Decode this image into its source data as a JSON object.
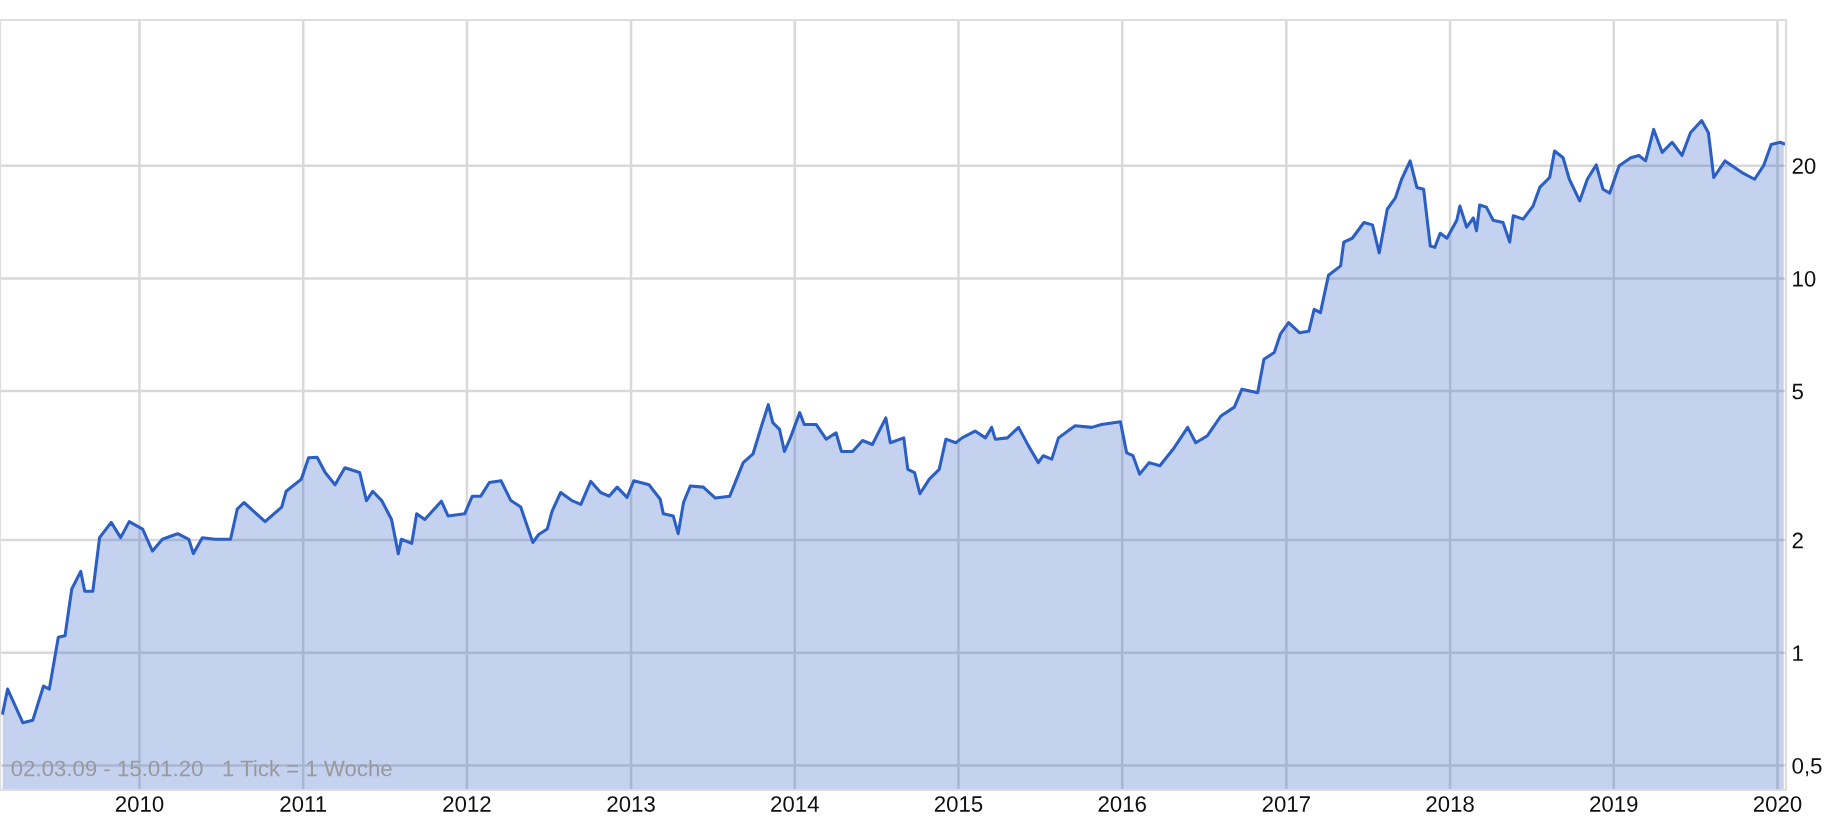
{
  "chart_data": {
    "type": "area",
    "log": "y",
    "grid": true,
    "annotations": [
      "02.03.09 - 15.01.20   1 Tick = 1 Woche"
    ],
    "xlim": [
      "2009-02-24",
      "2020-01-20"
    ],
    "xticks": [
      {
        "value": "2010-01-01",
        "label": "2010"
      },
      {
        "value": "2011-01-01",
        "label": "2011"
      },
      {
        "value": "2012-01-01",
        "label": "2012"
      },
      {
        "value": "2013-01-01",
        "label": "2013"
      },
      {
        "value": "2014-01-01",
        "label": "2014"
      },
      {
        "value": "2015-01-01",
        "label": "2015"
      },
      {
        "value": "2016-01-01",
        "label": "2016"
      },
      {
        "value": "2017-01-01",
        "label": "2017"
      },
      {
        "value": "2018-01-01",
        "label": "2018"
      },
      {
        "value": "2019-01-01",
        "label": "2019"
      },
      {
        "value": "2020-01-01",
        "label": "2020"
      }
    ],
    "ylim": [
      0.43,
      49
    ],
    "yticks": [
      {
        "value": 0.5,
        "label": "0,5"
      },
      1,
      2,
      5,
      10,
      20
    ],
    "series": [
      {
        "color": "#2b5fc4",
        "x": [
          "2009-03-02",
          "2009-03-13",
          "2009-04-16",
          "2009-05-08",
          "2009-06-01",
          "2009-06-14",
          "2009-07-04",
          "2009-07-19",
          "2009-08-03",
          "2009-08-23",
          "2009-09-01",
          "2009-09-19",
          "2009-10-04",
          "2009-10-30",
          "2009-11-20",
          "2009-12-09",
          "2010-01-08",
          "2010-01-30",
          "2010-02-21",
          "2010-03-27",
          "2010-04-21",
          "2010-05-01",
          "2010-05-21",
          "2010-06-19",
          "2010-07-23",
          "2010-08-07",
          "2010-08-22",
          "2010-10-08",
          "2010-11-14",
          "2010-11-24",
          "2010-12-28",
          "2011-01-13",
          "2011-02-01",
          "2011-02-19",
          "2011-03-13",
          "2011-04-04",
          "2011-05-07",
          "2011-05-22",
          "2011-06-05",
          "2011-06-25",
          "2011-07-17",
          "2011-08-01",
          "2011-08-08",
          "2011-08-31",
          "2011-09-11",
          "2011-09-29",
          "2011-11-05",
          "2011-11-20",
          "2011-12-27",
          "2012-01-13",
          "2012-02-01",
          "2012-02-20",
          "2012-03-17",
          "2012-04-08",
          "2012-04-30",
          "2012-05-27",
          "2012-06-09",
          "2012-06-28",
          "2012-07-09",
          "2012-07-28",
          "2012-08-22",
          "2012-09-11",
          "2012-10-03",
          "2012-10-25",
          "2012-11-13",
          "2012-12-01",
          "2012-12-23",
          "2013-01-07",
          "2013-02-10",
          "2013-03-07",
          "2013-03-14",
          "2013-04-05",
          "2013-04-16",
          "2013-04-28",
          "2013-05-13",
          "2013-06-11",
          "2013-07-08",
          "2013-08-09",
          "2013-09-08",
          "2013-09-30",
          "2013-10-19",
          "2013-11-03",
          "2013-11-13",
          "2013-11-28",
          "2013-12-09",
          "2013-12-21",
          "2014-01-12",
          "2014-01-22",
          "2014-02-18",
          "2014-03-12",
          "2014-04-03",
          "2014-04-15",
          "2014-05-10",
          "2014-06-01",
          "2014-06-23",
          "2014-07-23",
          "2014-08-02",
          "2014-09-01",
          "2014-09-10",
          "2014-09-25",
          "2014-10-07",
          "2014-10-28",
          "2014-11-19",
          "2014-12-04",
          "2014-12-26",
          "2015-01-09",
          "2015-02-07",
          "2015-03-02",
          "2015-03-16",
          "2015-03-24",
          "2015-04-20",
          "2015-05-15",
          "2015-06-06",
          "2015-06-28",
          "2015-07-09",
          "2015-07-28",
          "2015-08-12",
          "2015-09-18",
          "2015-10-25",
          "2015-11-16",
          "2015-12-28",
          "2016-01-11",
          "2016-01-25",
          "2016-02-09",
          "2016-03-01",
          "2016-03-25",
          "2016-04-26",
          "2016-05-26",
          "2016-06-13",
          "2016-07-09",
          "2016-08-08",
          "2016-09-07",
          "2016-09-24",
          "2016-10-29",
          "2016-11-12",
          "2016-12-05",
          "2016-12-19",
          "2017-01-06",
          "2017-01-30",
          "2017-02-20",
          "2017-03-04",
          "2017-03-18",
          "2017-04-05",
          "2017-05-02",
          "2017-05-09",
          "2017-05-28",
          "2017-06-23",
          "2017-07-12",
          "2017-07-27",
          "2017-08-14",
          "2017-09-01",
          "2017-09-15",
          "2017-10-04",
          "2017-10-19",
          "2017-11-03",
          "2017-11-18",
          "2017-11-28",
          "2017-12-10",
          "2017-12-25",
          "2018-01-16",
          "2018-01-23",
          "2018-02-07",
          "2018-02-22",
          "2018-03-01",
          "2018-03-08",
          "2018-03-23",
          "2018-04-07",
          "2018-04-29",
          "2018-05-14",
          "2018-05-22",
          "2018-06-13",
          "2018-07-05",
          "2018-07-20",
          "2018-08-11",
          "2018-08-22",
          "2018-09-10",
          "2018-09-24",
          "2018-10-17",
          "2018-11-03",
          "2018-11-23",
          "2018-12-08",
          "2018-12-23",
          "2019-01-13",
          "2019-02-08",
          "2019-02-26",
          "2019-03-13",
          "2019-03-31",
          "2019-04-19",
          "2019-05-11",
          "2019-06-02",
          "2019-06-21",
          "2019-07-16",
          "2019-07-31",
          "2019-08-12",
          "2019-09-06",
          "2019-10-13",
          "2019-11-11",
          "2019-12-01",
          "2019-12-18",
          "2020-01-07",
          "2020-01-15"
        ],
        "values": [
          0.69,
          0.8,
          0.65,
          0.66,
          0.815,
          0.8,
          1.1,
          1.11,
          1.48,
          1.65,
          1.46,
          1.46,
          2.03,
          2.23,
          2.03,
          2.24,
          2.14,
          1.87,
          2.01,
          2.08,
          2.01,
          1.84,
          2.03,
          2.01,
          2.01,
          2.42,
          2.52,
          2.24,
          2.45,
          2.7,
          2.91,
          3.32,
          3.33,
          3.03,
          2.81,
          3.12,
          3.03,
          2.55,
          2.7,
          2.55,
          2.27,
          1.84,
          2.01,
          1.96,
          2.35,
          2.27,
          2.54,
          2.32,
          2.35,
          2.62,
          2.62,
          2.85,
          2.88,
          2.55,
          2.45,
          1.97,
          2.07,
          2.14,
          2.39,
          2.68,
          2.55,
          2.49,
          2.87,
          2.68,
          2.62,
          2.77,
          2.6,
          2.88,
          2.81,
          2.57,
          2.35,
          2.32,
          2.08,
          2.52,
          2.79,
          2.77,
          2.59,
          2.62,
          3.22,
          3.4,
          4.04,
          4.6,
          4.12,
          3.95,
          3.45,
          3.72,
          4.38,
          4.07,
          4.07,
          3.72,
          3.87,
          3.45,
          3.45,
          3.69,
          3.6,
          4.24,
          3.64,
          3.75,
          3.09,
          3.03,
          2.66,
          2.91,
          3.09,
          3.72,
          3.64,
          3.75,
          3.91,
          3.75,
          4.0,
          3.72,
          3.75,
          4.0,
          3.57,
          3.22,
          3.36,
          3.29,
          3.75,
          4.04,
          4.0,
          4.07,
          4.14,
          3.42,
          3.36,
          3.0,
          3.22,
          3.16,
          3.53,
          4.0,
          3.64,
          3.8,
          4.29,
          4.53,
          5.06,
          4.95,
          6.08,
          6.34,
          7.11,
          7.62,
          7.16,
          7.22,
          8.27,
          8.1,
          10.2,
          10.8,
          12.5,
          12.8,
          14.1,
          13.9,
          11.7,
          15.3,
          16.4,
          18.4,
          20.6,
          17.5,
          17.3,
          12.2,
          12.1,
          13.2,
          12.8,
          14.3,
          15.6,
          13.7,
          14.5,
          13.4,
          15.7,
          15.5,
          14.3,
          14.1,
          12.5,
          14.7,
          14.4,
          15.6,
          17.5,
          18.6,
          21.9,
          21.0,
          18.4,
          16.1,
          18.4,
          20.1,
          17.3,
          16.9,
          20.0,
          21.0,
          21.3,
          20.6,
          25.0,
          21.7,
          23.1,
          21.3,
          24.5,
          26.4,
          24.5,
          18.6,
          20.6,
          19.2,
          18.4,
          20.0,
          22.8,
          23.1,
          22.9
        ]
      }
    ]
  }
}
